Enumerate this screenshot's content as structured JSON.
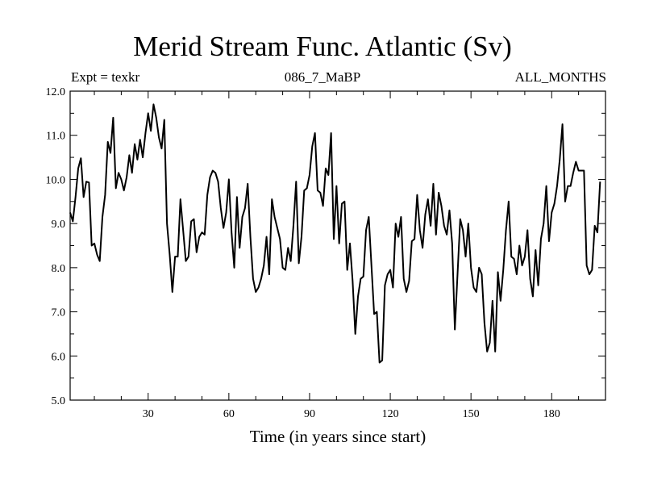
{
  "header": {
    "title": "Merid Stream Func. Atlantic (Sv)",
    "experiment": "Expt = texkr",
    "run": "086_7_MaBP",
    "period": "ALL_MONTHS"
  },
  "chart_data": {
    "type": "line",
    "title": "Merid Stream Func. Atlantic (Sv)",
    "xlabel": "Time (in years since start)",
    "ylabel": "",
    "xlim": [
      1,
      200
    ],
    "ylim": [
      5.0,
      12.0
    ],
    "x_ticks": [
      30,
      60,
      90,
      120,
      150,
      180
    ],
    "y_ticks": [
      "5.0",
      "6.0",
      "7.0",
      "8.0",
      "9.0",
      "10.0",
      "11.0",
      "12.0"
    ],
    "series": [
      {
        "name": "Merid Stream Func. Atlantic",
        "color": "#000000",
        "x_start": 1,
        "x_step": 1,
        "values": [
          9.25,
          9.05,
          9.6,
          10.25,
          10.48,
          9.6,
          9.95,
          9.93,
          8.5,
          8.55,
          8.3,
          8.15,
          9.15,
          9.65,
          10.85,
          10.6,
          11.4,
          9.8,
          10.15,
          10.0,
          9.75,
          10.05,
          10.55,
          10.15,
          10.8,
          10.45,
          10.9,
          10.5,
          11.05,
          11.5,
          11.1,
          11.7,
          11.4,
          10.95,
          10.7,
          11.35,
          9.0,
          8.3,
          7.45,
          8.25,
          8.25,
          9.55,
          8.85,
          8.15,
          8.25,
          9.05,
          9.1,
          8.35,
          8.7,
          8.8,
          8.75,
          9.65,
          10.05,
          10.2,
          10.15,
          9.95,
          9.35,
          8.9,
          9.25,
          10.0,
          8.8,
          8.0,
          9.6,
          8.45,
          9.15,
          9.35,
          9.9,
          8.7,
          7.75,
          7.45,
          7.55,
          7.75,
          8.05,
          8.7,
          7.85,
          9.55,
          9.15,
          8.9,
          8.65,
          8.0,
          7.95,
          8.45,
          8.15,
          8.95,
          9.95,
          8.1,
          8.7,
          9.75,
          9.8,
          10.1,
          10.75,
          11.05,
          9.75,
          9.7,
          9.4,
          10.25,
          10.1,
          11.05,
          8.65,
          9.85,
          8.55,
          9.45,
          9.5,
          7.95,
          8.55,
          7.7,
          6.5,
          7.35,
          7.75,
          7.8,
          8.85,
          9.15,
          8.05,
          6.95,
          7.0,
          5.85,
          5.9,
          7.6,
          7.85,
          7.95,
          7.55,
          9.0,
          8.7,
          9.15,
          7.75,
          7.45,
          7.7,
          8.6,
          8.65,
          9.65,
          8.85,
          8.45,
          9.2,
          9.55,
          8.95,
          9.9,
          8.75,
          9.7,
          9.4,
          8.95,
          8.75,
          9.3,
          8.55,
          6.6,
          7.85,
          9.1,
          8.85,
          8.25,
          9.0,
          8.0,
          7.55,
          7.45,
          8.0,
          7.85,
          6.75,
          6.1,
          6.3,
          7.25,
          6.1,
          7.9,
          7.25,
          7.95,
          8.85,
          9.5,
          8.25,
          8.2,
          7.85,
          8.5,
          8.05,
          8.25,
          8.85,
          7.75,
          7.35,
          8.4,
          7.6,
          8.65,
          9.0,
          9.85,
          8.6,
          9.25,
          9.45,
          9.85,
          10.45,
          11.25,
          9.5,
          9.85,
          9.85,
          10.15,
          10.4,
          10.2,
          10.2,
          10.2,
          8.05,
          7.85,
          7.95,
          8.95,
          8.8,
          9.95
        ]
      }
    ]
  }
}
